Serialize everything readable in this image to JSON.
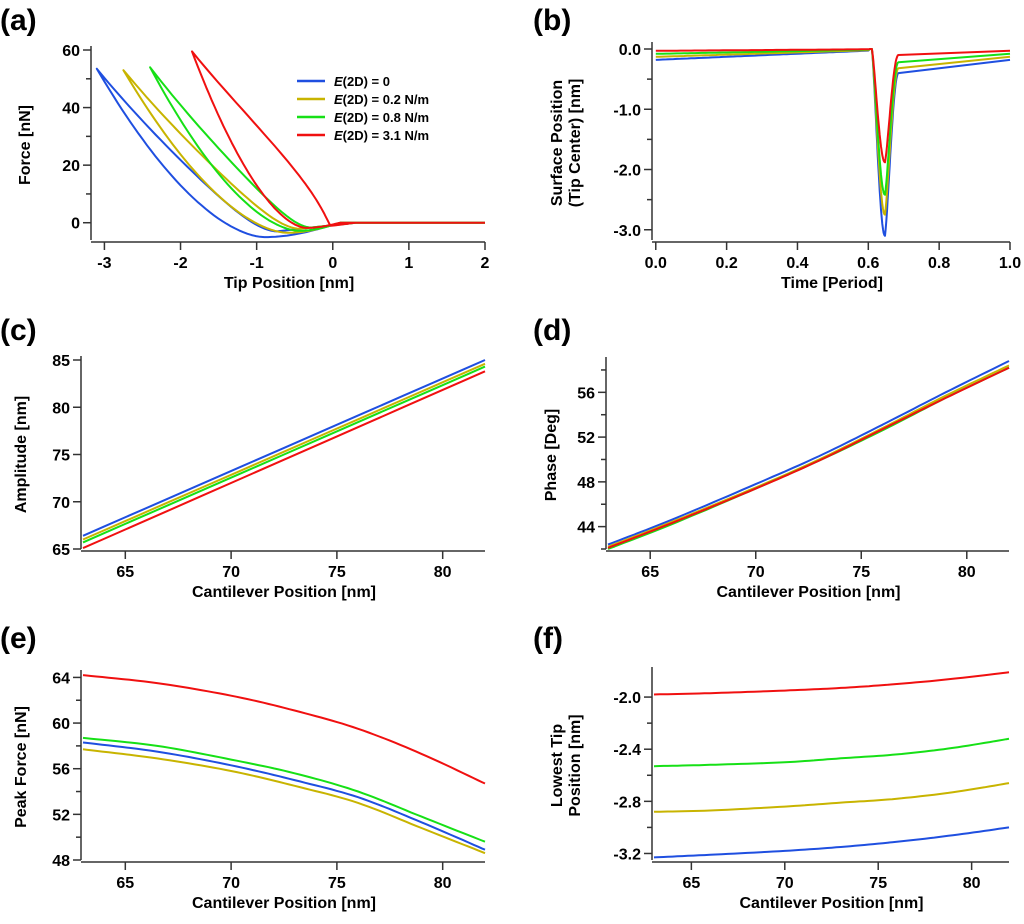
{
  "colors": {
    "E0": "#1f4fe0",
    "E0.2": "#c8b400",
    "E0.8": "#16e016",
    "E3.1": "#f01010"
  },
  "legend": [
    {
      "key": "E0",
      "italic": "E",
      "rest": "(2D) = 0"
    },
    {
      "key": "E0.2",
      "italic": "E",
      "rest": "(2D) = 0.2 N/m"
    },
    {
      "key": "E0.8",
      "italic": "E",
      "rest": "(2D) = 0.8 N/m"
    },
    {
      "key": "E3.1",
      "italic": "E",
      "rest": "(2D) = 3.1 N/m"
    }
  ],
  "chart_data": [
    {
      "panel": "(a)",
      "type": "line",
      "xlabel": "Tip Position [nm]",
      "ylabel": "Force [nN]",
      "xlim": [
        -3.15,
        2
      ],
      "ylim": [
        -6,
        60
      ],
      "xticks": [
        -3,
        -2,
        -1,
        0,
        1,
        2
      ],
      "xtick_labels": [
        "-3",
        "-2",
        "-1",
        "0",
        "1",
        "2"
      ],
      "yticks": [
        0,
        20,
        40,
        60
      ],
      "ytick_labels": [
        "0",
        "20",
        "40",
        "60"
      ],
      "yminor": [
        10,
        30,
        50
      ],
      "legend_position": "top-right",
      "series": [
        {
          "key": "E0",
          "name": "E(2D) = 0",
          "peak": [
            -3.1,
            53.5
          ],
          "min": [
            -0.9,
            -5
          ],
          "loop": "approach-retract"
        },
        {
          "key": "E0.2",
          "name": "E(2D) = 0.2 N/m",
          "peak": [
            -2.75,
            53
          ],
          "min": [
            -0.6,
            -3.5
          ]
        },
        {
          "key": "E0.8",
          "name": "E(2D) = 0.8 N/m",
          "peak": [
            -2.4,
            54
          ],
          "min": [
            -0.45,
            -2.8
          ]
        },
        {
          "key": "E3.1",
          "name": "E(2D) = 3.1 N/m",
          "peak": [
            -1.85,
            59.5
          ],
          "min": [
            -0.35,
            -1.8
          ]
        }
      ]
    },
    {
      "panel": "(b)",
      "type": "line",
      "xlabel": "Time [Period]",
      "ylabel": "Surface Position\n(Tip Center) [nm]",
      "xlim": [
        -0.005,
        1.0
      ],
      "ylim": [
        -3.17,
        0.05
      ],
      "xticks": [
        0,
        0.2,
        0.4,
        0.6,
        0.8,
        1.0
      ],
      "xtick_labels": [
        "0.0",
        "0.2",
        "0.4",
        "0.6",
        "0.8",
        "1.0"
      ],
      "yticks": [
        0,
        -1,
        -2,
        -3
      ],
      "ytick_labels": [
        "0.0",
        "-1.0",
        "-2.0",
        "-3.0"
      ],
      "yminor": [
        -0.5,
        -1.5,
        -2.5
      ],
      "series": [
        {
          "key": "E0",
          "start": -0.18,
          "min": -3.1,
          "recover": -0.4,
          "end": -0.18
        },
        {
          "key": "E0.2",
          "start": -0.13,
          "min": -2.75,
          "recover": -0.32,
          "end": -0.13
        },
        {
          "key": "E0.8",
          "start": -0.08,
          "min": -2.42,
          "recover": -0.22,
          "end": -0.08
        },
        {
          "key": "E3.1",
          "start": -0.03,
          "min": -1.88,
          "recover": -0.1,
          "end": -0.03
        }
      ]
    },
    {
      "panel": "(c)",
      "type": "line",
      "xlabel": "Cantilever Position [nm]",
      "ylabel": "Amplitude [nm]",
      "xlim": [
        63,
        82
      ],
      "ylim": [
        65,
        85
      ],
      "xticks": [
        65,
        70,
        75,
        80
      ],
      "xtick_labels": [
        "65",
        "70",
        "75",
        "80"
      ],
      "yticks": [
        65,
        70,
        75,
        80,
        85
      ],
      "ytick_labels": [
        "65",
        "70",
        "75",
        "80",
        "85"
      ],
      "x": [
        63,
        82
      ],
      "series": [
        {
          "key": "E0",
          "values": [
            66.4,
            85.0
          ]
        },
        {
          "key": "E0.2",
          "values": [
            66.0,
            84.6
          ]
        },
        {
          "key": "E0.8",
          "values": [
            65.7,
            84.3
          ]
        },
        {
          "key": "E3.1",
          "values": [
            65.1,
            83.8
          ]
        }
      ]
    },
    {
      "panel": "(d)",
      "type": "line",
      "xlabel": "Cantilever Position [nm]",
      "ylabel": "Phase [Deg]",
      "xlim": [
        63,
        82
      ],
      "ylim": [
        42,
        58.8
      ],
      "xticks": [
        65,
        70,
        75,
        80
      ],
      "xtick_labels": [
        "65",
        "70",
        "75",
        "80"
      ],
      "yticks": [
        44,
        48,
        52,
        56
      ],
      "ytick_labels": [
        "44",
        "48",
        "52",
        "56"
      ],
      "yminor": [
        42,
        46,
        50,
        54,
        58
      ],
      "x": [
        63,
        66,
        70,
        73,
        76,
        79,
        82
      ],
      "series": [
        {
          "key": "E0",
          "values": [
            42.4,
            44.6,
            47.8,
            50.3,
            53.1,
            56.0,
            58.8
          ]
        },
        {
          "key": "E0.2",
          "values": [
            42.2,
            44.4,
            47.5,
            50.0,
            52.8,
            55.7,
            58.4
          ]
        },
        {
          "key": "E0.8",
          "values": [
            42.0,
            44.2,
            47.4,
            49.9,
            52.6,
            55.5,
            58.2
          ]
        },
        {
          "key": "E3.1",
          "values": [
            42.1,
            44.3,
            47.4,
            49.9,
            52.7,
            55.5,
            58.2
          ]
        }
      ]
    },
    {
      "panel": "(e)",
      "type": "line",
      "xlabel": "Cantilever Position [nm]",
      "ylabel": "Peak Force [nN]",
      "xlim": [
        63,
        82
      ],
      "ylim": [
        48,
        64.3
      ],
      "xticks": [
        65,
        70,
        75,
        80
      ],
      "xtick_labels": [
        "65",
        "70",
        "75",
        "80"
      ],
      "yticks": [
        48,
        52,
        56,
        60,
        64
      ],
      "ytick_labels": [
        "48",
        "52",
        "56",
        "60",
        "64"
      ],
      "yminor": [
        50,
        54,
        58,
        62
      ],
      "x": [
        63,
        66.5,
        70,
        73,
        76,
        79,
        82
      ],
      "series": [
        {
          "key": "E0",
          "values": [
            58.3,
            57.5,
            56.3,
            55.0,
            53.5,
            51.3,
            48.9
          ]
        },
        {
          "key": "E0.2",
          "values": [
            57.7,
            56.9,
            55.8,
            54.5,
            53.0,
            50.8,
            48.6
          ]
        },
        {
          "key": "E0.8",
          "values": [
            58.7,
            58.0,
            56.8,
            55.6,
            54.0,
            51.8,
            49.6
          ]
        },
        {
          "key": "E3.1",
          "values": [
            64.2,
            63.5,
            62.4,
            61.1,
            59.5,
            57.3,
            54.7
          ]
        }
      ]
    },
    {
      "panel": "(f)",
      "type": "line",
      "xlabel": "Cantilever Position [nm]",
      "ylabel": "Lowest Tip\nPosition [nm]",
      "xlim": [
        63,
        82
      ],
      "ylim": [
        -3.25,
        -1.8
      ],
      "xticks": [
        65,
        70,
        75,
        80
      ],
      "xtick_labels": [
        "65",
        "70",
        "75",
        "80"
      ],
      "yticks": [
        -2.0,
        -2.4,
        -2.8,
        -3.2
      ],
      "ytick_labels": [
        "-2.0",
        "-2.4",
        "-2.8",
        "-3.2"
      ],
      "yminor": [
        -2.2,
        -2.6,
        -3.0
      ],
      "x": [
        63,
        66,
        70,
        73,
        76,
        79,
        82
      ],
      "series": [
        {
          "key": "E0",
          "values": [
            -3.23,
            -3.21,
            -3.18,
            -3.15,
            -3.11,
            -3.06,
            -3.0
          ]
        },
        {
          "key": "E0.2",
          "values": [
            -2.88,
            -2.87,
            -2.84,
            -2.81,
            -2.78,
            -2.73,
            -2.66
          ]
        },
        {
          "key": "E0.8",
          "values": [
            -2.53,
            -2.52,
            -2.5,
            -2.47,
            -2.44,
            -2.39,
            -2.32
          ]
        },
        {
          "key": "E3.1",
          "values": [
            -1.98,
            -1.97,
            -1.95,
            -1.93,
            -1.9,
            -1.86,
            -1.81
          ]
        }
      ]
    }
  ]
}
